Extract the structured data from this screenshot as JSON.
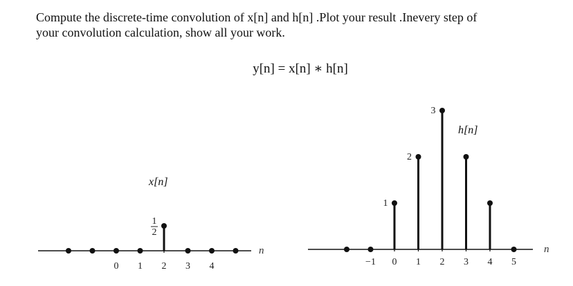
{
  "problem": {
    "text_line1": "Compute the discrete-time convolution of x[n] and h[n] .Plot your result .Inevery step of",
    "text_line2": "your convolution calculation, show all your work.",
    "equation": "y[n] = x[n] ∗ h[n]"
  },
  "chart_data": [
    {
      "type": "stem",
      "signal_label": "x[n]",
      "axis_variable": "n",
      "tick_labels": [
        "0",
        "1",
        "2",
        "3",
        "4"
      ],
      "tick_positions": [
        0,
        1,
        2,
        3,
        4
      ],
      "points": [
        {
          "n": -2,
          "value": 0
        },
        {
          "n": -1,
          "value": 0
        },
        {
          "n": 0,
          "value": 0
        },
        {
          "n": 1,
          "value": 0
        },
        {
          "n": 2,
          "value": 0.5,
          "label_numerator": "1",
          "label_denominator": "2"
        },
        {
          "n": 3,
          "value": 0
        },
        {
          "n": 4,
          "value": 0
        },
        {
          "n": 5,
          "value": 0
        }
      ]
    },
    {
      "type": "stem",
      "signal_label": "h[n]",
      "axis_variable": "n",
      "tick_labels": [
        "−1",
        "0",
        "1",
        "2",
        "3",
        "4",
        "5"
      ],
      "tick_positions": [
        -1,
        0,
        1,
        2,
        3,
        4,
        5
      ],
      "points": [
        {
          "n": -2,
          "value": 0
        },
        {
          "n": -1,
          "value": 0
        },
        {
          "n": 0,
          "value": 1,
          "label": "1"
        },
        {
          "n": 1,
          "value": 2,
          "label": "2"
        },
        {
          "n": 2,
          "value": 3,
          "label": "3"
        },
        {
          "n": 3,
          "value": 2
        },
        {
          "n": 4,
          "value": 1
        },
        {
          "n": 5,
          "value": 0
        }
      ]
    }
  ]
}
